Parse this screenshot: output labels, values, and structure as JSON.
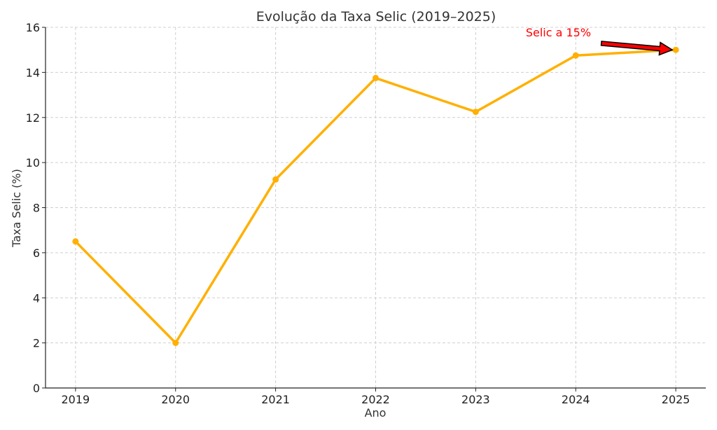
{
  "chart_data": {
    "type": "line",
    "title": "Evolução da Taxa Selic (2019–2025)",
    "xlabel": "Ano",
    "ylabel": "Taxa Selic (%)",
    "x": [
      2019,
      2020,
      2021,
      2022,
      2023,
      2024,
      2025
    ],
    "series": [
      {
        "name": "",
        "values": [
          6.5,
          2.0,
          9.25,
          13.75,
          12.25,
          14.75,
          15.0
        ],
        "color": "#FFB000"
      }
    ],
    "xlim": [
      2018.7,
      2025.3
    ],
    "ylim": [
      0,
      16
    ],
    "yticks": [
      0,
      2,
      4,
      6,
      8,
      10,
      12,
      14,
      16
    ],
    "xticks": [
      2019,
      2020,
      2021,
      2022,
      2023,
      2024,
      2025
    ],
    "grid": true,
    "grid_style": "dashed",
    "annotation": {
      "text": "Selic a 15%",
      "x": 2025,
      "y": 15.0,
      "text_x": 2023.5,
      "text_y": 15.6,
      "color": "#FF0000",
      "arrow_color": "#FF0000"
    }
  }
}
